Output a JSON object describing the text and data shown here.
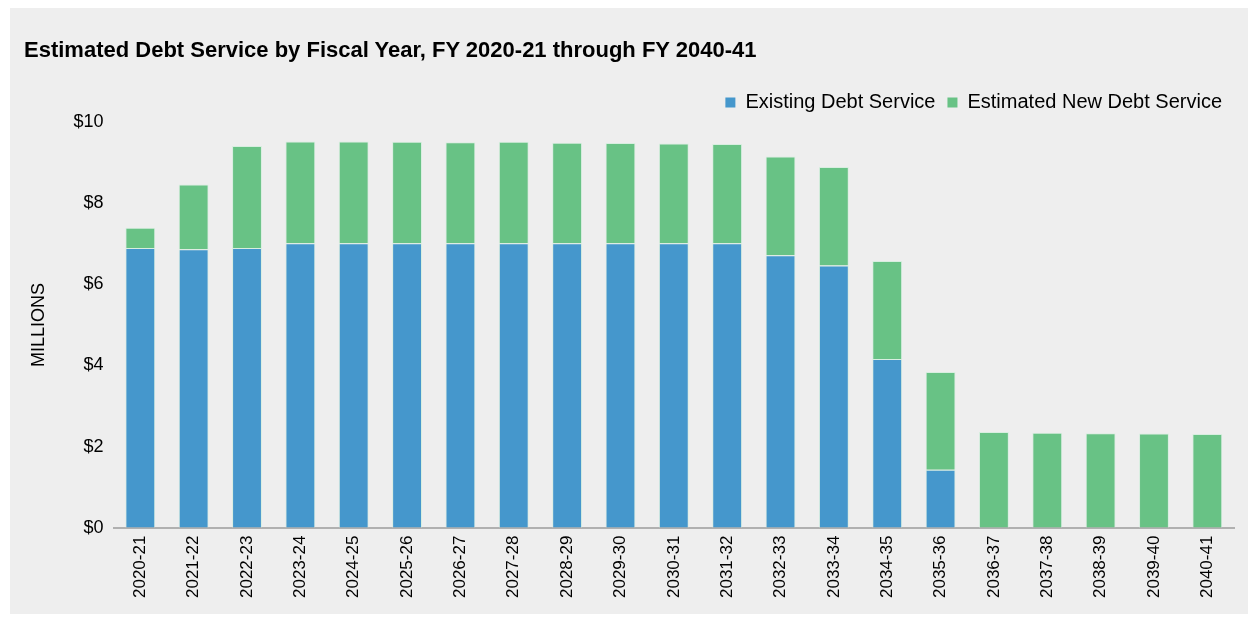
{
  "chart_data": {
    "type": "bar",
    "title": "Estimated Debt Service by Fiscal Year, FY 2020-21 through FY 2040-41",
    "ylabel": "MILLIONS",
    "categories": [
      "2020-21",
      "2021-22",
      "2022-23",
      "2023-24",
      "2024-25",
      "2025-26",
      "2026-27",
      "2027-28",
      "2028-29",
      "2029-30",
      "2030-31",
      "2031-32",
      "2032-33",
      "2033-34",
      "2034-35",
      "2035-36",
      "2036-37",
      "2037-38",
      "2038-39",
      "2039-40",
      "2040-41"
    ],
    "stacked": true,
    "series": [
      {
        "name": "Existing Debt Service",
        "color": "#4597cc",
        "values": [
          6.9,
          6.87,
          6.9,
          7.02,
          7.02,
          7.02,
          7.02,
          7.02,
          7.02,
          7.02,
          7.02,
          7.02,
          6.72,
          6.47,
          4.16,
          1.43,
          0,
          0,
          0,
          0,
          0
        ]
      },
      {
        "name": "Estimated New Debt Service",
        "color": "#68c285",
        "values": [
          0.5,
          1.6,
          2.52,
          2.51,
          2.51,
          2.5,
          2.49,
          2.5,
          2.48,
          2.47,
          2.46,
          2.45,
          2.44,
          2.43,
          2.42,
          2.41,
          2.36,
          2.34,
          2.33,
          2.32,
          2.31
        ]
      }
    ],
    "ylim": [
      0,
      10
    ],
    "yticks": [
      {
        "value": 0,
        "label": "$0"
      },
      {
        "value": 2,
        "label": "$2"
      },
      {
        "value": 4,
        "label": "$4"
      },
      {
        "value": 6,
        "label": "$6"
      },
      {
        "value": 8,
        "label": "$8"
      },
      {
        "value": 10,
        "label": "$10"
      }
    ],
    "legend": "top right"
  }
}
